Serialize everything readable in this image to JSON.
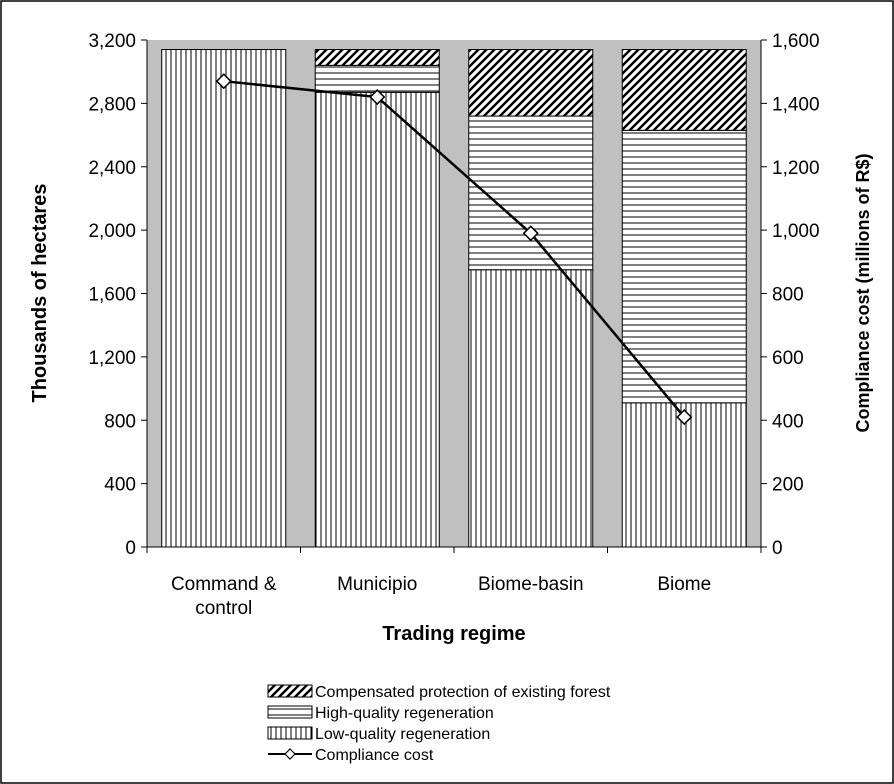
{
  "chart_data": {
    "type": "bar",
    "stacked": true,
    "xlabel": "Trading regime",
    "ylabel": "Thousands of hectares",
    "y2label": "Compliance cost (millions of R$)",
    "ylim": [
      0,
      3200
    ],
    "y2lim": [
      0,
      1600
    ],
    "yticks": [
      "0",
      "400",
      "800",
      "1,200",
      "1,600",
      "2,000",
      "2,400",
      "2,800",
      "3,200"
    ],
    "y2ticks": [
      "0",
      "200",
      "400",
      "600",
      "800",
      "1,000",
      "1,200",
      "1,400",
      "1,600"
    ],
    "categories": [
      [
        "Command &",
        "control"
      ],
      [
        "Municipio"
      ],
      [
        "Biome-basin"
      ],
      [
        "Biome"
      ]
    ],
    "grid": false,
    "plot_background": "#c0c0c0",
    "legend_position": "bottom",
    "series": [
      {
        "name": "Low-quality regeneration",
        "pattern": "vertical-lines",
        "axis": "left",
        "values": [
          3140,
          2870,
          1750,
          910
        ]
      },
      {
        "name": "High-quality regeneration",
        "pattern": "horizontal-lines",
        "axis": "left",
        "values": [
          0,
          170,
          970,
          1720
        ]
      },
      {
        "name": "Compensated protection of existing forest",
        "pattern": "diagonal-hatch",
        "axis": "left",
        "values": [
          0,
          100,
          420,
          510
        ]
      },
      {
        "name": "Compliance cost",
        "type": "line",
        "marker": "diamond",
        "axis": "right",
        "values": [
          1470,
          1420,
          990,
          410
        ]
      }
    ],
    "legend_order": [
      "Compensated protection of existing forest",
      "High-quality regeneration",
      "Low-quality regeneration",
      "Compliance cost"
    ]
  }
}
